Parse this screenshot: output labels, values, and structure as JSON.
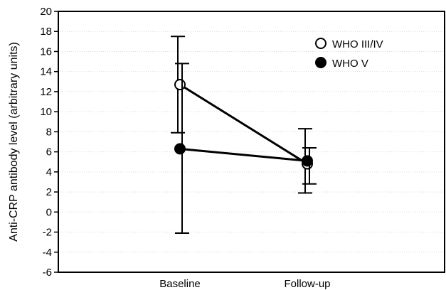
{
  "chart_data": {
    "type": "line",
    "categories": [
      "Baseline",
      "Follow-up"
    ],
    "series": [
      {
        "name": "WHO III/IV",
        "marker": "open-circle",
        "values": [
          12.7,
          4.8
        ],
        "error_low": [
          7.9,
          1.9
        ],
        "error_high": [
          17.5,
          8.3
        ]
      },
      {
        "name": "WHO V",
        "marker": "filled-circle",
        "values": [
          6.3,
          5.1
        ],
        "error_low": [
          -2.1,
          2.8
        ],
        "error_high": [
          14.8,
          6.4
        ]
      }
    ],
    "ylabel": "Anti-CRP antibody level (arbitrary units)",
    "xlabel": "",
    "ylim": [
      -6,
      20
    ],
    "yticks": [
      -6,
      -4,
      -2,
      0,
      2,
      4,
      6,
      8,
      10,
      12,
      14,
      16,
      18,
      20
    ],
    "grid": "horizontal",
    "legend_position": "top-right",
    "colors": {
      "line": "#000000",
      "grid": "#d9d9d9",
      "open_fill": "#ffffff",
      "filled_fill": "#000000"
    }
  }
}
